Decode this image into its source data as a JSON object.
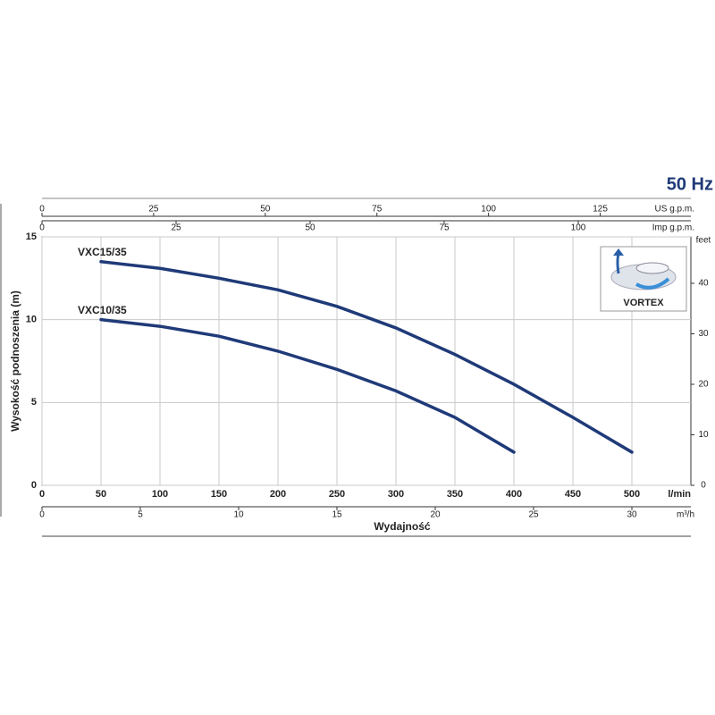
{
  "chart_data": {
    "type": "line",
    "title": "50 Hz",
    "xlabel": "Wydajność",
    "ylabel": "Wysokość podnoszenia (m)",
    "x_unit": "l/min",
    "xlim": [
      0,
      550
    ],
    "xticks": [
      0,
      50,
      100,
      150,
      200,
      250,
      300,
      350,
      400,
      450,
      500
    ],
    "ylim": [
      0,
      15
    ],
    "yticks": [
      0,
      5,
      10,
      15
    ],
    "y2_unit": "feet",
    "y2lim": [
      0,
      49.2
    ],
    "y2ticks": [
      0,
      10,
      20,
      30,
      40
    ],
    "extra_x_axes": [
      {
        "label": "US g.p.m.",
        "lim": [
          0,
          145.3
        ],
        "ticks": [
          0,
          25,
          50,
          75,
          100,
          125
        ]
      },
      {
        "label": "Imp g.p.m.",
        "lim": [
          0,
          121
        ],
        "ticks": [
          0,
          25,
          50,
          75,
          100
        ]
      },
      {
        "label": "m³/h",
        "lim": [
          0,
          33
        ],
        "ticks": [
          0,
          5,
          10,
          15,
          20,
          25,
          30
        ]
      }
    ],
    "grid": true,
    "inset_label": "VORTEX",
    "series": [
      {
        "name": "VXC15/35",
        "color": "#1f3a78",
        "x": [
          50,
          100,
          150,
          200,
          250,
          300,
          350,
          400,
          450,
          500
        ],
        "values": [
          13.5,
          13.1,
          12.5,
          11.8,
          10.8,
          9.5,
          7.9,
          6.1,
          4.1,
          2.0
        ]
      },
      {
        "name": "VXC10/35",
        "color": "#1f3a78",
        "x": [
          50,
          100,
          150,
          200,
          250,
          300,
          350,
          400
        ],
        "values": [
          10,
          9.6,
          9.0,
          8.1,
          7.0,
          5.7,
          4.1,
          2.0
        ]
      }
    ]
  }
}
